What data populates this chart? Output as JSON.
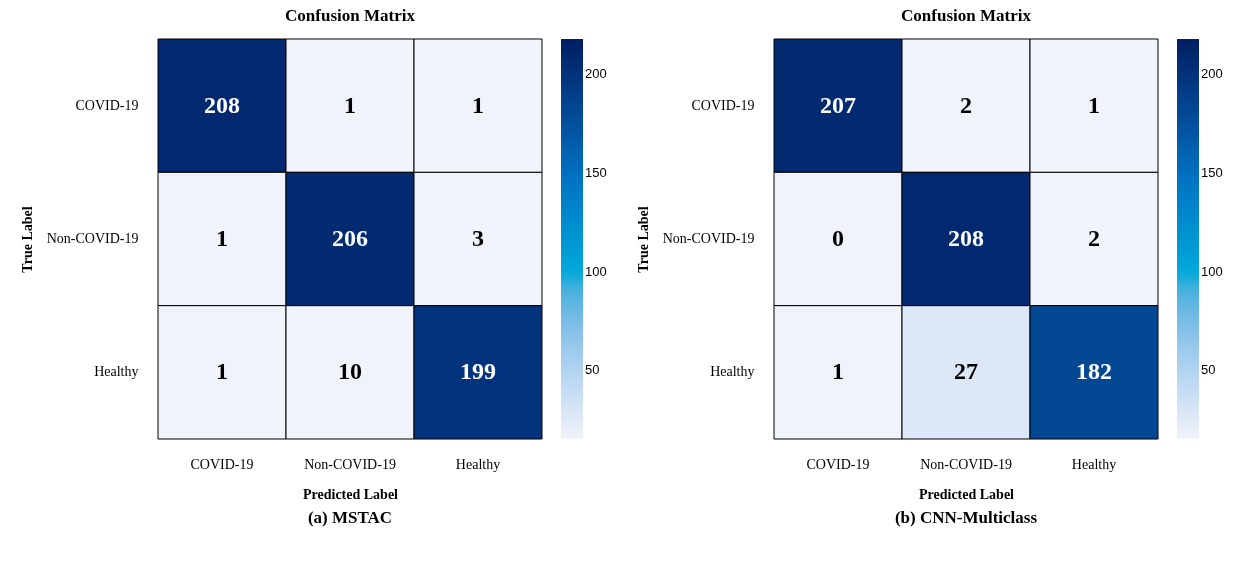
{
  "chart_data": [
    {
      "type": "heatmap",
      "title": "Confusion Matrix",
      "xlabel": "Predicted Label",
      "ylabel": "True Label",
      "categories": [
        "COVID-19",
        "Non-COVID-19",
        "Healthy"
      ],
      "y_categories": [
        "COVID-19",
        "Non-COVID-19",
        "Healthy"
      ],
      "cells": [
        [
          208,
          1,
          1
        ],
        [
          1,
          206,
          3
        ],
        [
          1,
          10,
          199
        ]
      ],
      "data_labels": true,
      "clim": [
        15,
        218
      ],
      "cticks": [
        50,
        100,
        150,
        200
      ],
      "annotations": [
        "(a) MSTAC"
      ]
    },
    {
      "type": "heatmap",
      "title": "Confusion Matrix",
      "xlabel": "Predicted Label",
      "ylabel": "True Label",
      "categories": [
        "COVID-19",
        "Non-COVID-19",
        "Healthy"
      ],
      "y_categories": [
        "COVID-19",
        "Non-COVID-19",
        "Healthy"
      ],
      "cells": [
        [
          207,
          2,
          1
        ],
        [
          0,
          208,
          2
        ],
        [
          1,
          27,
          182
        ]
      ],
      "data_labels": true,
      "clim": [
        15,
        218
      ],
      "cticks": [
        50,
        100,
        150,
        200
      ],
      "annotations": [
        "(b) CNN-Multiclass"
      ]
    }
  ]
}
